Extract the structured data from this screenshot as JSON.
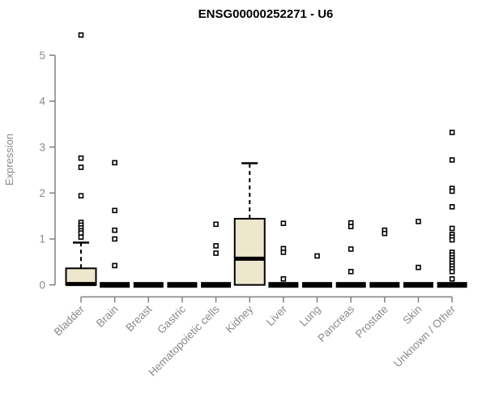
{
  "title": "ENSG00000252271 - U6",
  "colors": {
    "background": "#ffffff",
    "box_fill": "#ece7cd",
    "box_stroke": "#000000",
    "median": "#000000",
    "whisker": "#000000",
    "outlier_stroke": "#000000",
    "outlier_fill": "#ffffff",
    "axis": "#808080",
    "tick_label": "#8a8a8a",
    "title": "#000000"
  },
  "chart_data": {
    "type": "boxplot",
    "title": "ENSG00000252271 - U6",
    "xlabel": "",
    "ylabel": "Expression",
    "ylim": [
      0,
      5.5
    ],
    "yticks": [
      0,
      1,
      2,
      3,
      4,
      5
    ],
    "grid": "off",
    "legend": "none",
    "categories": [
      "Bladder",
      "Brain",
      "Breast",
      "Gastric",
      "Hematopoietic cells",
      "Kidney",
      "Liver",
      "Lung",
      "Pancreas",
      "Prostate",
      "Skin",
      "Unknown / Other"
    ],
    "boxes": [
      {
        "category": "Bladder",
        "q1": 0,
        "median": 0.02,
        "q3": 0.36,
        "whisker_low": 0,
        "whisker_high": 0.92,
        "outliers": [
          5.44,
          2.76,
          2.56,
          1.94,
          1.36,
          1.3,
          1.24,
          1.18,
          1.13,
          1.04
        ]
      },
      {
        "category": "Brain",
        "q1": 0,
        "median": 0,
        "q3": 0,
        "whisker_low": 0,
        "whisker_high": 0,
        "outliers": [
          2.66,
          1.62,
          1.19,
          1.0,
          0.42
        ]
      },
      {
        "category": "Breast",
        "q1": 0,
        "median": 0,
        "q3": 0,
        "whisker_low": 0,
        "whisker_high": 0,
        "outliers": []
      },
      {
        "category": "Gastric",
        "q1": 0,
        "median": 0,
        "q3": 0,
        "whisker_low": 0,
        "whisker_high": 0,
        "outliers": []
      },
      {
        "category": "Hematopoietic cells",
        "q1": 0,
        "median": 0,
        "q3": 0,
        "whisker_low": 0,
        "whisker_high": 0,
        "outliers": [
          1.32,
          0.85,
          0.69
        ]
      },
      {
        "category": "Kidney",
        "q1": 0,
        "median": 0.57,
        "q3": 1.44,
        "whisker_low": 0,
        "whisker_high": 2.65,
        "outliers": []
      },
      {
        "category": "Liver",
        "q1": 0,
        "median": 0,
        "q3": 0,
        "whisker_low": 0,
        "whisker_high": 0,
        "outliers": [
          1.34,
          0.79,
          0.71,
          0.13
        ]
      },
      {
        "category": "Lung",
        "q1": 0,
        "median": 0,
        "q3": 0,
        "whisker_low": 0,
        "whisker_high": 0,
        "outliers": [
          0.63
        ]
      },
      {
        "category": "Pancreas",
        "q1": 0,
        "median": 0,
        "q3": 0,
        "whisker_low": 0,
        "whisker_high": 0,
        "outliers": [
          1.35,
          1.27,
          0.78,
          0.29
        ]
      },
      {
        "category": "Prostate",
        "q1": 0,
        "median": 0,
        "q3": 0,
        "whisker_low": 0,
        "whisker_high": 0,
        "outliers": [
          1.19,
          1.12
        ]
      },
      {
        "category": "Skin",
        "q1": 0,
        "median": 0,
        "q3": 0,
        "whisker_low": 0,
        "whisker_high": 0,
        "outliers": [
          1.38,
          0.38
        ]
      },
      {
        "category": "Unknown / Other",
        "q1": 0,
        "median": 0,
        "q3": 0,
        "whisker_low": 0,
        "whisker_high": 0,
        "outliers": [
          3.32,
          2.72,
          2.1,
          2.04,
          1.7,
          1.23,
          1.1,
          1.04,
          0.98,
          0.71,
          0.65,
          0.59,
          0.53,
          0.47,
          0.41,
          0.35,
          0.29,
          0.13
        ]
      }
    ]
  }
}
